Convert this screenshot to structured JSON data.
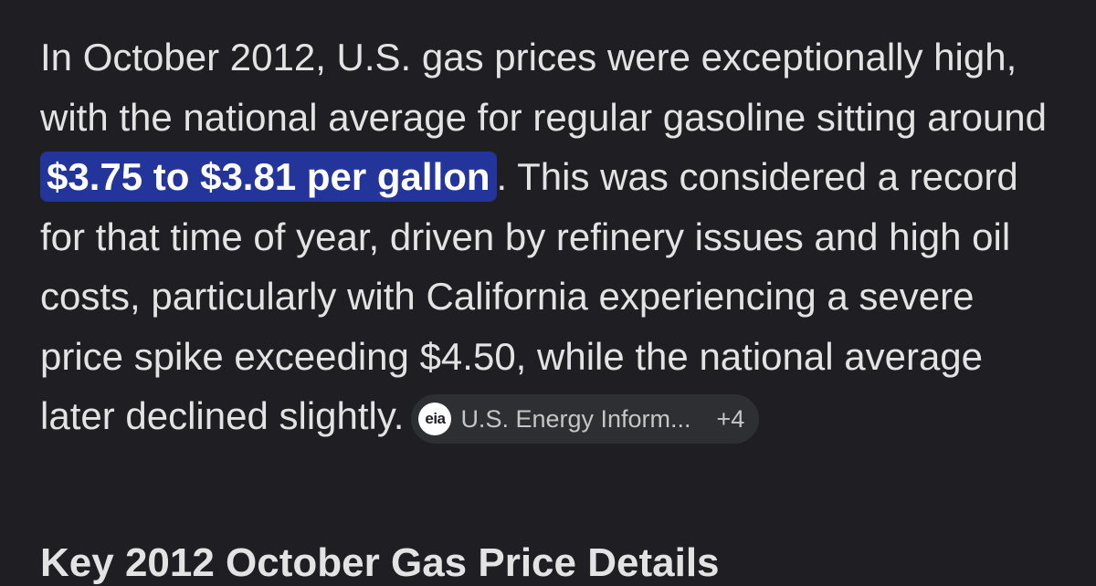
{
  "answer": {
    "text_before": "In October 2012, U.S. gas prices were exceptionally high, with the national average for regular gasoline sitting around ",
    "highlight": "$3.75 to $3.81 per gallon",
    "text_after": ". This was considered a record for that time of year, driven by refinery issues and high oil costs, particularly with California experiencing a severe price spike exceeding $4.50, while the national average later declined slightly."
  },
  "source_chip": {
    "logo_text": "eia",
    "name": "U.S. Energy Inform...",
    "count": "+4"
  },
  "next_section": {
    "heading": "Key 2012 October Gas Price Details"
  },
  "colors": {
    "background": "#1f1f23",
    "text": "#e3e3e3",
    "highlight_bg": "#23349a",
    "chip_bg": "#2e2f33"
  }
}
